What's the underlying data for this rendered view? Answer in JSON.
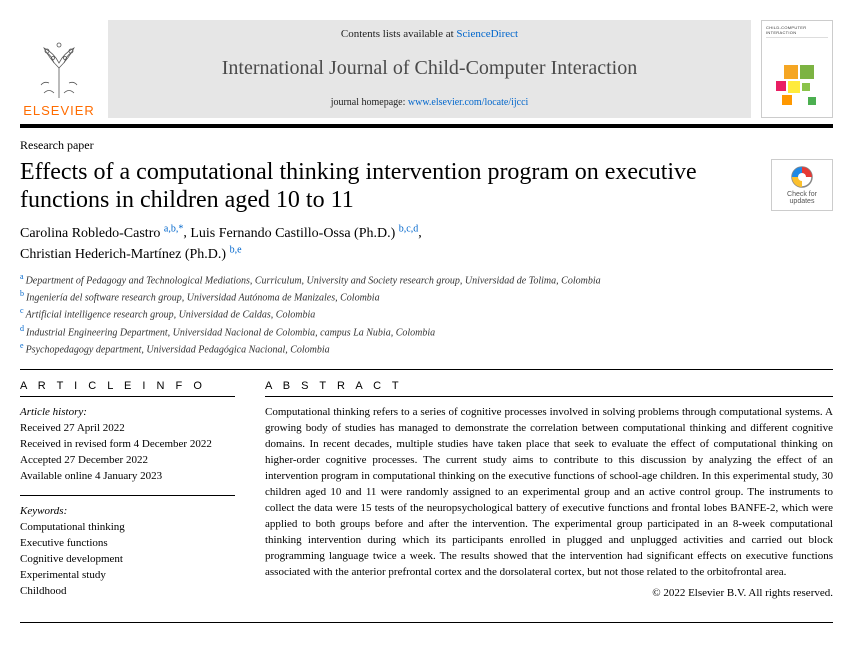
{
  "header": {
    "publisher_name": "ELSEVIER",
    "contents_prefix": "Contents lists available at ",
    "contents_link_text": "ScienceDirect",
    "journal_title": "International Journal of Child-Computer Interaction",
    "homepage_prefix": "journal homepage: ",
    "homepage_link_text": "www.elsevier.com/locate/ijcci",
    "cover_text": "CHILD-COMPUTER INTERACTION"
  },
  "article": {
    "type": "Research paper",
    "title": "Effects of a computational thinking intervention program on executive functions in children aged 10 to 11",
    "updates_label": "Check for updates",
    "authors": [
      {
        "name": "Carolina Robledo-Castro",
        "aff": "a,b,",
        "corr": "*"
      },
      {
        "name": "Luis Fernando Castillo-Ossa (Ph.D.)",
        "aff": "b,c,d",
        "corr": ""
      },
      {
        "name": "Christian Hederich-Martínez (Ph.D.)",
        "aff": "b,e",
        "corr": ""
      }
    ],
    "affiliations": [
      {
        "lbl": "a",
        "text": "Department of Pedagogy and Technological Mediations, Curriculum, University and Society research group, Universidad de Tolima, Colombia"
      },
      {
        "lbl": "b",
        "text": "Ingeniería del software research group, Universidad Autónoma de Manizales, Colombia"
      },
      {
        "lbl": "c",
        "text": "Artificial intelligence research group, Universidad de Caldas, Colombia"
      },
      {
        "lbl": "d",
        "text": "Industrial Engineering Department, Universidad Nacional de Colombia, campus La Nubia, Colombia"
      },
      {
        "lbl": "e",
        "text": "Psychopedagogy department, Universidad Pedagógica Nacional, Colombia"
      }
    ]
  },
  "info": {
    "heading": "A R T I C L E   I N F O",
    "history_label": "Article history:",
    "history": [
      "Received 27 April 2022",
      "Received in revised form 4 December 2022",
      "Accepted 27 December 2022",
      "Available online 4 January 2023"
    ],
    "keywords_label": "Keywords:",
    "keywords": [
      "Computational thinking",
      "Executive functions",
      "Cognitive development",
      "Experimental study",
      "Childhood"
    ]
  },
  "abstract": {
    "heading": "A B S T R A C T",
    "text": "Computational thinking refers to a series of cognitive processes involved in solving problems through computational systems. A growing body of studies has managed to demonstrate the correlation between computational thinking and different cognitive domains. In recent decades, multiple studies have taken place that seek to evaluate the effect of computational thinking on higher-order cognitive processes. The current study aims to contribute to this discussion by analyzing the effect of an intervention program in computational thinking on the executive functions of school-age children. In this experimental study, 30 children aged 10 and 11 were randomly assigned to an experimental group and an active control group. The instruments to collect the data were 15 tests of the neuropsychological battery of executive functions and frontal lobes BANFE-2, which were applied to both groups before and after the intervention. The experimental group participated in an 8-week computational thinking intervention during which its participants enrolled in plugged and unplugged activities and carried out block programming language twice a week. The results showed that the intervention had significant effects on executive functions associated with the anterior prefrontal cortex and the dorsolateral cortex, but not those related to the orbitofrontal area.",
    "copyright": "© 2022 Elsevier B.V. All rights reserved."
  },
  "colors": {
    "link": "#0066cc",
    "orange": "#ff6c00",
    "header_bg": "#e6e6e6"
  }
}
